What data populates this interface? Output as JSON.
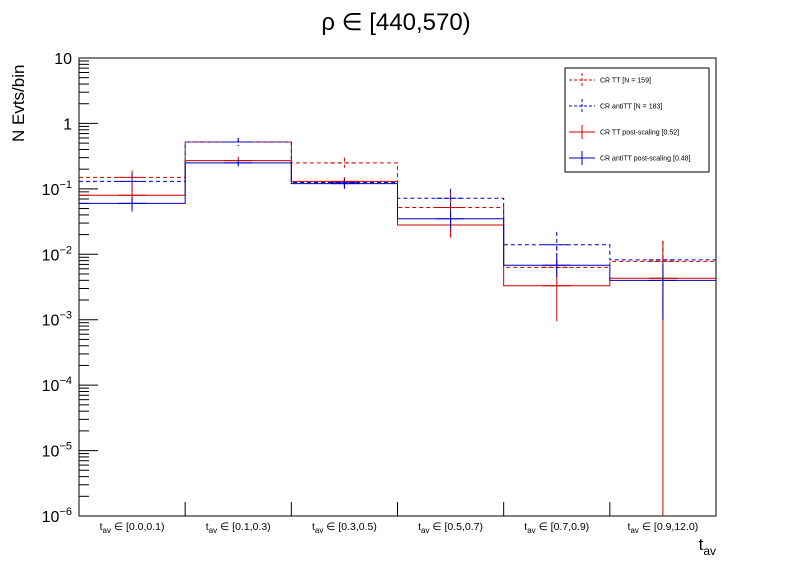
{
  "chart_data": {
    "type": "step-histogram",
    "title": "ρ ∈ [440,570)",
    "xlabel": "t_av",
    "ylabel": "N Evts/bin",
    "yscale": "log",
    "ylim": [
      1e-06,
      10
    ],
    "categories": [
      "t_av ∈ [0.0,0.1)",
      "t_av ∈ [0.1,0.3)",
      "t_av ∈ [0.3,0.5)",
      "t_av ∈ [0.5,0.7)",
      "t_av ∈ [0.7,0.9)",
      "t_av ∈ [0.9,12.0)"
    ],
    "category_parts": [
      {
        "sub": "av",
        "rest": " ∈ [0.0,0.1)"
      },
      {
        "sub": "av",
        "rest": " ∈ [0.1,0.3)"
      },
      {
        "sub": "av",
        "rest": " ∈ [0.3,0.5)"
      },
      {
        "sub": "av",
        "rest": " ∈ [0.5,0.7)"
      },
      {
        "sub": "av",
        "rest": " ∈ [0.7,0.9)"
      },
      {
        "sub": "av",
        "rest": " ∈ [0.9,12.0)"
      }
    ],
    "y_ticks": [
      {
        "base": "10",
        "exp": "",
        "value": 10
      },
      {
        "base": "1",
        "exp": "",
        "value": 1
      },
      {
        "base": "10",
        "exp": "−1",
        "value": 0.1
      },
      {
        "base": "10",
        "exp": "−2",
        "value": 0.01
      },
      {
        "base": "10",
        "exp": "−3",
        "value": 0.001
      },
      {
        "base": "10",
        "exp": "−4",
        "value": 0.0001
      },
      {
        "base": "10",
        "exp": "−5",
        "value": 1e-05
      },
      {
        "base": "10",
        "exp": "−6",
        "value": 1e-06
      }
    ],
    "legend_position": "top-right",
    "series": [
      {
        "name": "CR TT [N = 159]",
        "color": "#d00000",
        "style": "dashed",
        "values": [
          0.15,
          0.52,
          0.25,
          0.052,
          0.0063,
          0.0078
        ],
        "err_low": [
          0.1,
          0.45,
          0.21,
          0.018,
          0.0063,
          0.0078
        ],
        "err_high": [
          0.19,
          0.6,
          0.3,
          0.09,
          0.013,
          0.016
        ]
      },
      {
        "name": "CR antiTT [N = 183]",
        "color": "#0000c0",
        "style": "dashed",
        "values": [
          0.13,
          0.52,
          0.125,
          0.072,
          0.014,
          0.0082
        ],
        "err_low": [
          0.09,
          0.45,
          0.1,
          0.045,
          0.006,
          0.001
        ],
        "err_high": [
          0.17,
          0.6,
          0.15,
          0.1,
          0.022,
          0.016
        ]
      },
      {
        "name": "CR TT post-scaling [0.52]",
        "color": "#d00000",
        "style": "solid",
        "values": [
          0.08,
          0.27,
          0.13,
          0.028,
          0.0033,
          0.0043
        ],
        "err_low": [
          0.05,
          0.23,
          0.11,
          0.018,
          0.00095,
          1e-06
        ],
        "err_high": [
          0.11,
          0.31,
          0.15,
          0.04,
          0.006,
          0.016
        ]
      },
      {
        "name": "CR antiTT post-scaling [0.48]",
        "color": "#0000c0",
        "style": "solid",
        "values": [
          0.06,
          0.25,
          0.12,
          0.035,
          0.0068,
          0.004
        ],
        "err_low": [
          0.045,
          0.22,
          0.1,
          0.025,
          0.0045,
          0.001
        ],
        "err_high": [
          0.075,
          0.28,
          0.14,
          0.045,
          0.009,
          0.007
        ]
      }
    ]
  }
}
